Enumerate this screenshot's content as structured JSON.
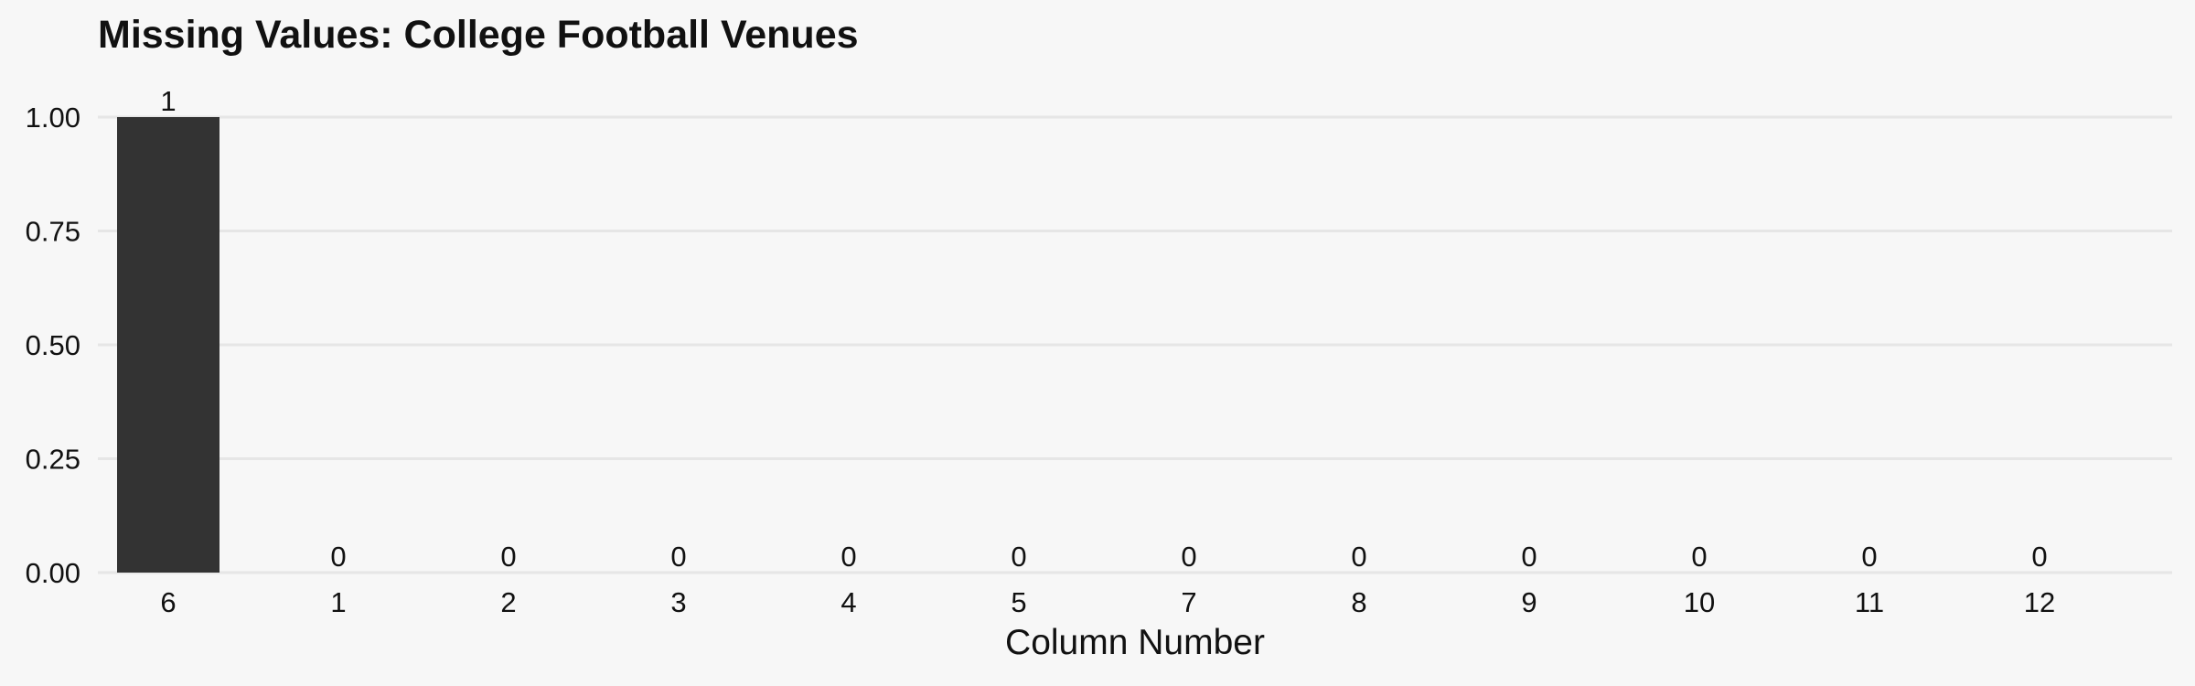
{
  "chart_data": {
    "type": "bar",
    "title": "Missing Values: College Football Venues",
    "xlabel": "Column Number",
    "ylabel": "",
    "categories": [
      "6",
      "1",
      "2",
      "3",
      "4",
      "5",
      "7",
      "8",
      "9",
      "10",
      "11",
      "12"
    ],
    "values": [
      1,
      0,
      0,
      0,
      0,
      0,
      0,
      0,
      0,
      0,
      0,
      0
    ],
    "data_labels": [
      "1",
      "0",
      "0",
      "0",
      "0",
      "0",
      "0",
      "0",
      "0",
      "0",
      "0",
      "0"
    ],
    "ylim": [
      0,
      1
    ],
    "yticks": [
      0,
      0.25,
      0.5,
      0.75,
      1
    ],
    "ytick_labels": [
      "0.00",
      "0.25",
      "0.50",
      "0.75",
      "1.00"
    ],
    "grid": "horizontal",
    "legend": "none",
    "colors": {
      "background": "#f7f7f7",
      "bar": "#333333",
      "grid": "#e6e6e6",
      "text": "#111111"
    }
  }
}
